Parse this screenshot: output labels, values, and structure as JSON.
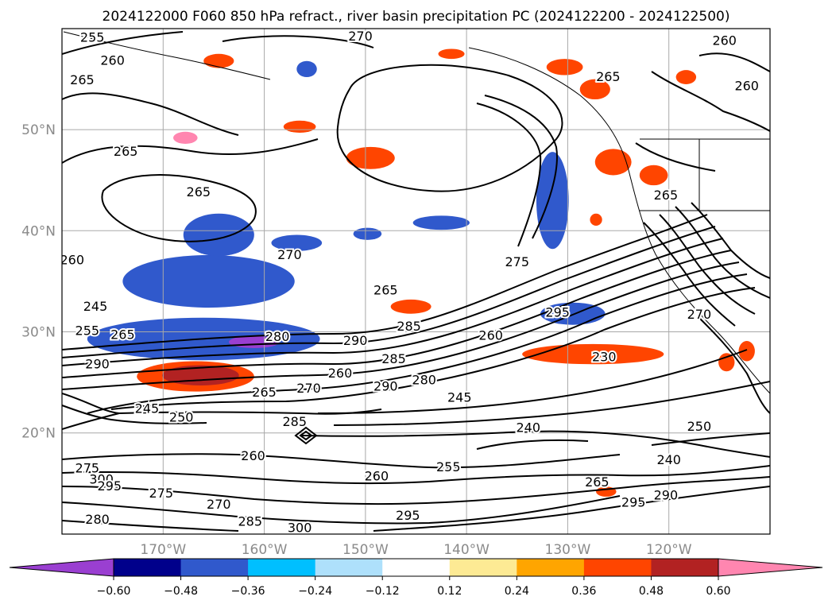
{
  "chart_data": {
    "type": "contour_map",
    "title": "2024122000 F060 850 hPa refract., river basin precipitation PC (2024122200 - 2024122500)",
    "lat_ticks": [
      "20°N",
      "30°N",
      "40°N",
      "50°N"
    ],
    "lon_ticks": [
      "170°W",
      "160°W",
      "150°W",
      "140°W",
      "130°W",
      "120°W"
    ],
    "extent": {
      "lon_min": -180,
      "lon_max": -110,
      "lat_min": 10,
      "lat_max": 60
    },
    "grid": true,
    "colorbar": {
      "orientation": "horizontal",
      "extend": "both",
      "levels": [
        -0.72,
        -0.6,
        -0.48,
        -0.36,
        -0.24,
        -0.12,
        0.12,
        0.24,
        0.36,
        0.48,
        0.6,
        0.72
      ],
      "colors": [
        "#9a3fd1",
        "#00008b",
        "#3059cc",
        "#00bfff",
        "#aee0fb",
        "#ffffff",
        "#fdea94",
        "#ffa500",
        "#ff4500",
        "#b22222",
        "#ff86b0"
      ],
      "tick_labels": [
        "−0.60",
        "−0.48",
        "−0.36",
        "−0.24",
        "−0.12",
        "0.12",
        "0.24",
        "0.36",
        "0.48",
        "0.60"
      ]
    },
    "contour_labels": [
      {
        "text": "255",
        "lon": -177,
        "lat": 59.1
      },
      {
        "text": "270",
        "lon": -150.5,
        "lat": 59.2
      },
      {
        "text": "260",
        "lon": -175,
        "lat": 56.8
      },
      {
        "text": "265",
        "lon": -178,
        "lat": 54.9
      },
      {
        "text": "260",
        "lon": -114.5,
        "lat": 58.8
      },
      {
        "text": "265",
        "lon": -126,
        "lat": 55.2
      },
      {
        "text": "260",
        "lon": -112.3,
        "lat": 54.3
      },
      {
        "text": "265",
        "lon": -173.7,
        "lat": 47.8
      },
      {
        "text": "265",
        "lon": -166.5,
        "lat": 43.8
      },
      {
        "text": "265",
        "lon": -120.3,
        "lat": 43.5
      },
      {
        "text": "270",
        "lon": -157.5,
        "lat": 37.6
      },
      {
        "text": "275",
        "lon": -135,
        "lat": 36.9
      },
      {
        "text": "265",
        "lon": -148,
        "lat": 34.1
      },
      {
        "text": "260",
        "lon": -179,
        "lat": 37.1
      },
      {
        "text": "245",
        "lon": -176.7,
        "lat": 32.5
      },
      {
        "text": "255",
        "lon": -177.5,
        "lat": 30.1
      },
      {
        "text": "265",
        "lon": -174,
        "lat": 29.7
      },
      {
        "text": "280",
        "lon": -158.7,
        "lat": 29.5
      },
      {
        "text": "290",
        "lon": -151,
        "lat": 29.1
      },
      {
        "text": "285",
        "lon": -145.7,
        "lat": 30.5
      },
      {
        "text": "260",
        "lon": -137.6,
        "lat": 29.6
      },
      {
        "text": "295",
        "lon": -131,
        "lat": 31.9
      },
      {
        "text": "270",
        "lon": -117,
        "lat": 31.7
      },
      {
        "text": "290",
        "lon": -176.5,
        "lat": 26.8
      },
      {
        "text": "285",
        "lon": -147.2,
        "lat": 27.3
      },
      {
        "text": "260",
        "lon": -152.5,
        "lat": 25.9
      },
      {
        "text": "290",
        "lon": -148,
        "lat": 24.6
      },
      {
        "text": "280",
        "lon": -144.2,
        "lat": 25.2
      },
      {
        "text": "270",
        "lon": -155.6,
        "lat": 24.4
      },
      {
        "text": "265",
        "lon": -160,
        "lat": 24.0
      },
      {
        "text": "230",
        "lon": -126.4,
        "lat": 27.5
      },
      {
        "text": "245",
        "lon": -171.6,
        "lat": 22.4
      },
      {
        "text": "250",
        "lon": -168.2,
        "lat": 21.5
      },
      {
        "text": "245",
        "lon": -140.7,
        "lat": 23.5
      },
      {
        "text": "285",
        "lon": -157,
        "lat": 21.1
      },
      {
        "text": "240",
        "lon": -133.9,
        "lat": 20.5
      },
      {
        "text": "250",
        "lon": -117,
        "lat": 20.6
      },
      {
        "text": "260",
        "lon": -161.1,
        "lat": 17.7
      },
      {
        "text": "240",
        "lon": -120,
        "lat": 17.3
      },
      {
        "text": "275",
        "lon": -177.5,
        "lat": 16.5
      },
      {
        "text": "300",
        "lon": -176.1,
        "lat": 15.4
      },
      {
        "text": "295",
        "lon": -175.3,
        "lat": 14.7
      },
      {
        "text": "255",
        "lon": -141.8,
        "lat": 16.6
      },
      {
        "text": "260",
        "lon": -148.9,
        "lat": 15.7
      },
      {
        "text": "265",
        "lon": -127.1,
        "lat": 15.1
      },
      {
        "text": "275",
        "lon": -170.2,
        "lat": 14.0
      },
      {
        "text": "270",
        "lon": -164.5,
        "lat": 12.9
      },
      {
        "text": "280",
        "lon": -176.5,
        "lat": 11.4
      },
      {
        "text": "285",
        "lon": -161.4,
        "lat": 11.2
      },
      {
        "text": "295",
        "lon": -145.8,
        "lat": 11.8
      },
      {
        "text": "300",
        "lon": -156.5,
        "lat": 10.6
      },
      {
        "text": "295",
        "lon": -123.5,
        "lat": 13.1
      },
      {
        "text": "290",
        "lon": -120.3,
        "lat": 13.8
      }
    ],
    "shaded_regions": [
      {
        "color": "#9a3fd1",
        "lon": -165.5,
        "lat": 34.7,
        "rlon": 3.2,
        "rlat": 1.2
      },
      {
        "color": "#00008b",
        "lon": -166,
        "lat": 34.9,
        "rlon": 5.5,
        "rlat": 1.8
      },
      {
        "color": "#3059cc",
        "lon": -165.5,
        "lat": 35.0,
        "rlon": 8.5,
        "rlat": 2.6
      },
      {
        "color": "#00008b",
        "lon": -165.5,
        "lat": 29.3,
        "rlon": 8.0,
        "rlat": 1.3
      },
      {
        "color": "#3059cc",
        "lon": -166,
        "lat": 29.3,
        "rlon": 11.5,
        "rlat": 2.1
      },
      {
        "color": "#9a3fd1",
        "lon": -161,
        "lat": 29.0,
        "rlon": 2.5,
        "rlat": 0.6
      },
      {
        "color": "#3059cc",
        "lon": -164.5,
        "lat": 39.6,
        "rlon": 3.5,
        "rlat": 2.1
      },
      {
        "color": "#00008b",
        "lon": -131.8,
        "lat": 43.5,
        "rlon": 0.9,
        "rlat": 3.2
      },
      {
        "color": "#3059cc",
        "lon": -131.5,
        "lat": 43.0,
        "rlon": 1.6,
        "rlat": 4.8
      },
      {
        "color": "#3059cc",
        "lon": -129.5,
        "lat": 31.8,
        "rlon": 3.2,
        "rlat": 1.1
      },
      {
        "color": "#3059cc",
        "lon": -142.5,
        "lat": 40.8,
        "rlon": 2.8,
        "rlat": 0.7
      },
      {
        "color": "#3059cc",
        "lon": -149.8,
        "lat": 39.7,
        "rlon": 1.4,
        "rlat": 0.6
      },
      {
        "color": "#3059cc",
        "lon": -156.8,
        "lat": 38.8,
        "rlon": 2.5,
        "rlat": 0.8
      },
      {
        "color": "#3059cc",
        "lon": -155.8,
        "lat": 56.0,
        "rlon": 1.0,
        "rlat": 0.8
      },
      {
        "color": "#ff4500",
        "lon": -166.8,
        "lat": 25.6,
        "rlon": 5.8,
        "rlat": 1.5
      },
      {
        "color": "#b22222",
        "lon": -166.3,
        "lat": 25.7,
        "rlon": 3.8,
        "rlat": 1.0
      },
      {
        "color": "#ff4500",
        "lon": -127.5,
        "lat": 27.8,
        "rlon": 7.0,
        "rlat": 1.0
      },
      {
        "color": "#ff4500",
        "lon": -149.5,
        "lat": 47.2,
        "rlon": 2.4,
        "rlat": 1.1
      },
      {
        "color": "#ff4500",
        "lon": -145.5,
        "lat": 32.5,
        "rlon": 2.0,
        "rlat": 0.7
      },
      {
        "color": "#ff4500",
        "lon": -130.3,
        "lat": 56.2,
        "rlon": 1.8,
        "rlat": 0.8
      },
      {
        "color": "#ff4500",
        "lon": -127.3,
        "lat": 54.0,
        "rlon": 1.5,
        "rlat": 1.0
      },
      {
        "color": "#ff4500",
        "lon": -125.5,
        "lat": 46.8,
        "rlon": 1.8,
        "rlat": 1.3
      },
      {
        "color": "#ff4500",
        "lon": -121.5,
        "lat": 45.5,
        "rlon": 1.4,
        "rlat": 1.0
      },
      {
        "color": "#ff4500",
        "lon": -118.3,
        "lat": 55.2,
        "rlon": 1.0,
        "rlat": 0.7
      },
      {
        "color": "#ff4500",
        "lon": -164.5,
        "lat": 56.8,
        "rlon": 1.5,
        "rlat": 0.7
      },
      {
        "color": "#ff4500",
        "lon": -156.5,
        "lat": 50.3,
        "rlon": 1.6,
        "rlat": 0.6
      },
      {
        "color": "#ff4500",
        "lon": -112.3,
        "lat": 28.1,
        "rlon": 0.8,
        "rlat": 1.0
      },
      {
        "color": "#ff4500",
        "lon": -114.3,
        "lat": 27.0,
        "rlon": 0.8,
        "rlat": 0.9
      },
      {
        "color": "#ff4500",
        "lon": -126.2,
        "lat": 14.2,
        "rlon": 1.0,
        "rlat": 0.5
      },
      {
        "color": "#ff4500",
        "lon": -141.5,
        "lat": 57.5,
        "rlon": 1.3,
        "rlat": 0.5
      },
      {
        "color": "#ff4500",
        "lon": -127.2,
        "lat": 41.1,
        "rlon": 0.6,
        "rlat": 0.6
      },
      {
        "color": "#ff86b0",
        "lon": -167.8,
        "lat": 49.2,
        "rlon": 1.2,
        "rlat": 0.6
      }
    ]
  }
}
